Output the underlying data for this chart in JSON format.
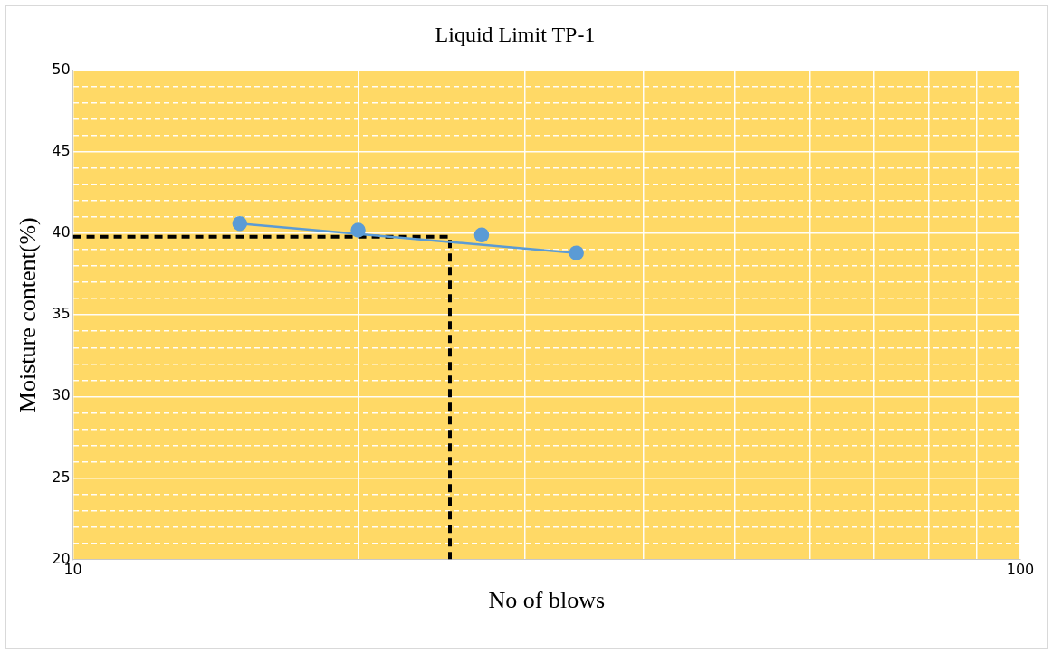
{
  "chart_data": {
    "type": "scatter",
    "title": "Liquid Limit TP-1",
    "xlabel": "No of blows",
    "ylabel": "Moisture content(%)",
    "log": "x",
    "grid": true,
    "legend": false,
    "xlim": [
      10,
      100
    ],
    "xticks": [
      10,
      {
        "value": 20,
        "label": null
      },
      {
        "value": 30,
        "label": null
      },
      {
        "value": 40,
        "label": null
      },
      {
        "value": 50,
        "label": null
      },
      {
        "value": 60,
        "label": null
      },
      {
        "value": 70,
        "label": null
      },
      {
        "value": 80,
        "label": null
      },
      {
        "value": 90,
        "label": null
      },
      100
    ],
    "ylim": [
      20,
      50
    ],
    "yticks": [
      20,
      {
        "value": 21,
        "label": null
      },
      {
        "value": 22,
        "label": null
      },
      {
        "value": 23,
        "label": null
      },
      {
        "value": 24,
        "label": null
      },
      25,
      {
        "value": 26,
        "label": null
      },
      {
        "value": 27,
        "label": null
      },
      {
        "value": 28,
        "label": null
      },
      {
        "value": 29,
        "label": null
      },
      30,
      {
        "value": 31,
        "label": null
      },
      {
        "value": 32,
        "label": null
      },
      {
        "value": 33,
        "label": null
      },
      {
        "value": 34,
        "label": null
      },
      35,
      {
        "value": 36,
        "label": null
      },
      {
        "value": 37,
        "label": null
      },
      {
        "value": 38,
        "label": null
      },
      {
        "value": 39,
        "label": null
      },
      40,
      {
        "value": 41,
        "label": null
      },
      {
        "value": 42,
        "label": null
      },
      {
        "value": 43,
        "label": null
      },
      {
        "value": 44,
        "label": null
      },
      45,
      {
        "value": 46,
        "label": null
      },
      {
        "value": 47,
        "label": null
      },
      {
        "value": 48,
        "label": null
      },
      {
        "value": 49,
        "label": null
      },
      50
    ],
    "series": [
      {
        "type": "scatter",
        "color": "#5b9bd5",
        "marker": "circle",
        "x": [
          15,
          20,
          27,
          34
        ],
        "values": [
          40.6,
          40.2,
          39.9,
          38.8
        ]
      },
      {
        "type": "line",
        "color": "#5b9bd5",
        "marker": "none",
        "line_style": "solid",
        "x": [
          15,
          34
        ],
        "values": [
          40.6,
          38.8
        ]
      },
      {
        "type": "line",
        "color": "#000000",
        "marker": "none",
        "line_style": "dashed",
        "x": [
          10,
          25,
          25
        ],
        "values": [
          39.8,
          39.8,
          20
        ]
      }
    ]
  }
}
